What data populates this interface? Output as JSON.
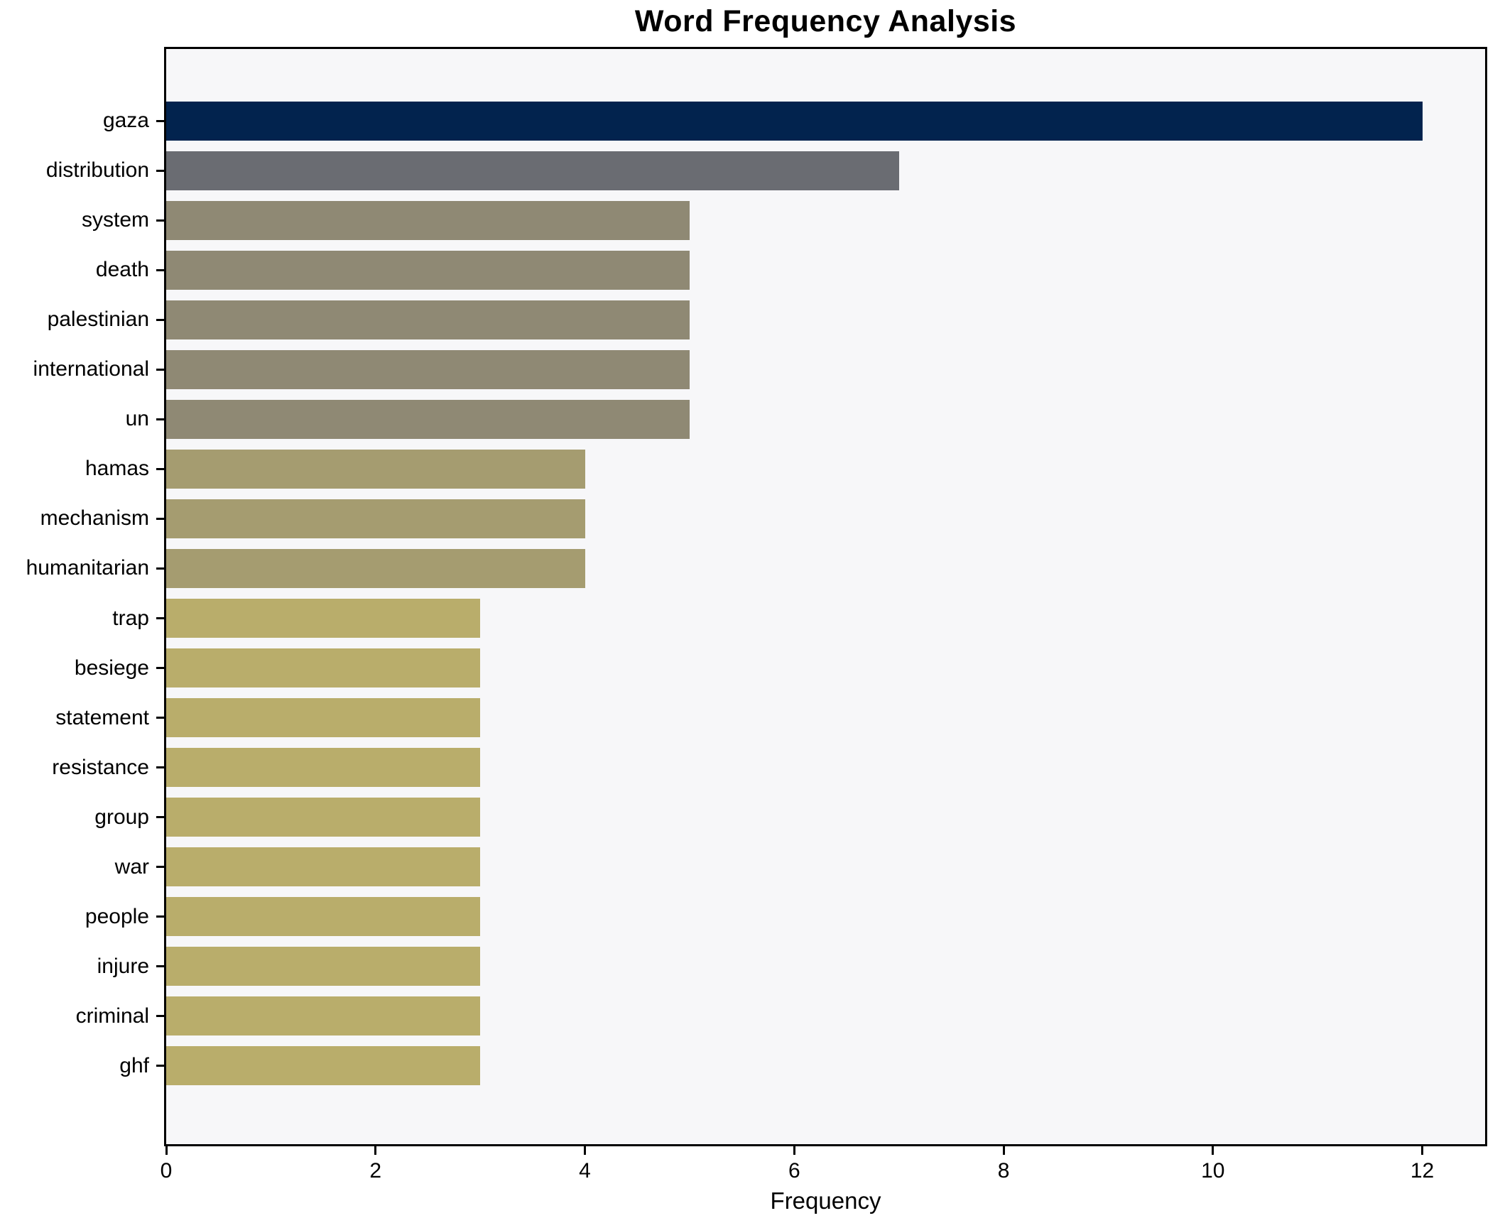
{
  "title": "Word Frequency Analysis",
  "chart_data": {
    "type": "bar",
    "orientation": "horizontal",
    "title": "Word Frequency Analysis",
    "xlabel": "Frequency",
    "ylabel": "",
    "categories": [
      "gaza",
      "distribution",
      "system",
      "death",
      "palestinian",
      "international",
      "un",
      "hamas",
      "mechanism",
      "humanitarian",
      "trap",
      "besiege",
      "statement",
      "resistance",
      "group",
      "war",
      "people",
      "injure",
      "criminal",
      "ghf"
    ],
    "values": [
      12,
      7,
      5,
      5,
      5,
      5,
      5,
      4,
      4,
      4,
      3,
      3,
      3,
      3,
      3,
      3,
      3,
      3,
      3,
      3
    ],
    "bar_colors": [
      "#02234e",
      "#6a6c72",
      "#8f8974",
      "#8f8974",
      "#8f8974",
      "#8f8974",
      "#8f8974",
      "#a59c70",
      "#a59c70",
      "#a59c70",
      "#b9ad6b",
      "#b9ad6b",
      "#b9ad6b",
      "#b9ad6b",
      "#b9ad6b",
      "#b9ad6b",
      "#b9ad6b",
      "#b9ad6b",
      "#b9ad6b",
      "#b9ad6b"
    ],
    "x_ticks": [
      0,
      2,
      4,
      6,
      8,
      10,
      12
    ],
    "xlim": [
      0,
      12.6
    ],
    "grid": false,
    "legend_position": "none",
    "plot_background": "#f7f7f9",
    "figure_background": "#ffffff",
    "spine_color": "#000000"
  }
}
